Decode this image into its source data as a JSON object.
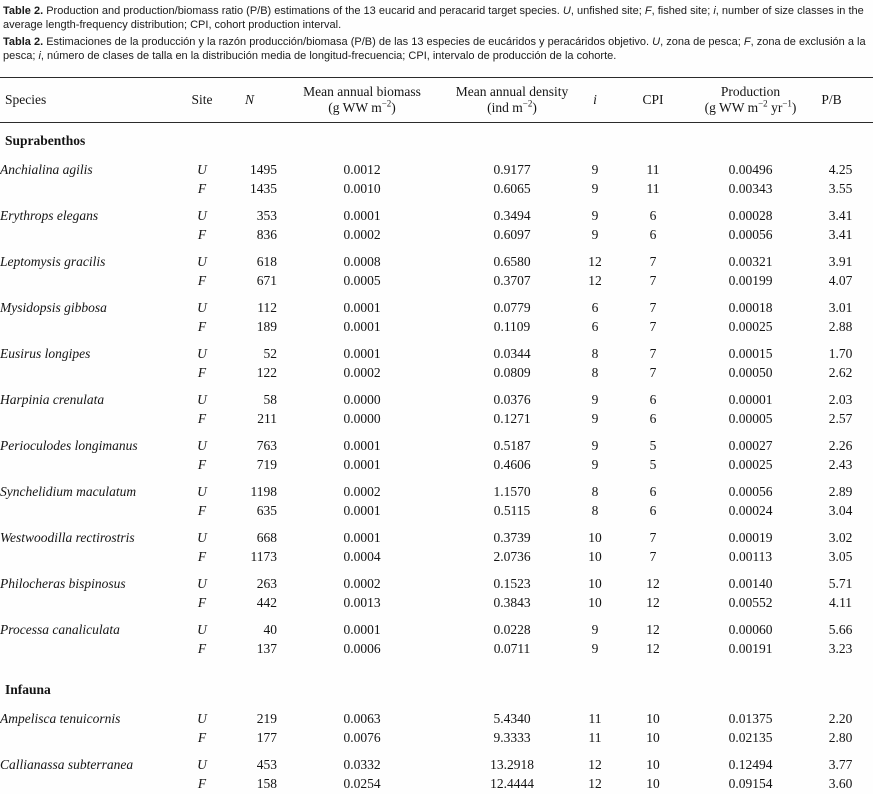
{
  "captions": {
    "english": {
      "label": "Table 2.",
      "s1": " Production and production/biomass ratio (P/B) estimations of the 13 eucarid and peracarid target species. ",
      "u": "U",
      "s2": ", unfished site; ",
      "f": "F",
      "s3": ", fished site; ",
      "i": "i",
      "s4": ", number of size classes in the average length-frequency distribution; CPI, cohort production interval."
    },
    "spanish": {
      "label": "Tabla 2.",
      "s1": " Estimaciones de la producción y la razón producción/biomasa (P/B) de las 13 especies de eucáridos y peracáridos objetivo. ",
      "u": "U",
      "s2": ", zona de pesca; ",
      "f": "F",
      "s3": ", zona de exclusión a la pesca; ",
      "i": "i",
      "s4": ", número de clases de talla en la distribución media de longitud-frecuencia; CPI, intervalo de producción de la cohorte."
    }
  },
  "table": {
    "header": {
      "species": "Species",
      "site": "Site",
      "n": "N",
      "biomass_title": "Mean annual biomass",
      "biomass_unit_pre": "(g WW m",
      "biomass_unit_sup": "−2",
      "biomass_unit_post": ")",
      "density_title": "Mean annual density",
      "density_unit_pre": "(ind m",
      "density_unit_sup": "−2",
      "density_unit_post": ")",
      "i": "i",
      "cpi": "CPI",
      "production_title": "Production",
      "production_unit_pre": "(g WW m",
      "production_unit_sup1": "−2",
      "production_unit_mid": " yr",
      "production_unit_sup2": "−1",
      "production_unit_post": ")",
      "pb": "P/B"
    },
    "sections": [
      {
        "title": "Suprabenthos",
        "species": [
          {
            "name": "Anchialina agilis",
            "rows": [
              {
                "site": "U",
                "n": "1495",
                "biomass": "0.0012",
                "density": "0.9177",
                "i": "9",
                "cpi": "11",
                "production": "0.00496",
                "pb": "4.25"
              },
              {
                "site": "F",
                "n": "1435",
                "biomass": "0.0010",
                "density": "0.6065",
                "i": "9",
                "cpi": "11",
                "production": "0.00343",
                "pb": "3.55"
              }
            ]
          },
          {
            "name": "Erythrops elegans",
            "rows": [
              {
                "site": "U",
                "n": "353",
                "biomass": "0.0001",
                "density": "0.3494",
                "i": "9",
                "cpi": "6",
                "production": "0.00028",
                "pb": "3.41"
              },
              {
                "site": "F",
                "n": "836",
                "biomass": "0.0002",
                "density": "0.6097",
                "i": "9",
                "cpi": "6",
                "production": "0.00056",
                "pb": "3.41"
              }
            ]
          },
          {
            "name": "Leptomysis gracilis",
            "rows": [
              {
                "site": "U",
                "n": "618",
                "biomass": "0.0008",
                "density": "0.6580",
                "i": "12",
                "cpi": "7",
                "production": "0.00321",
                "pb": "3.91"
              },
              {
                "site": "F",
                "n": "671",
                "biomass": "0.0005",
                "density": "0.3707",
                "i": "12",
                "cpi": "7",
                "production": "0.00199",
                "pb": "4.07"
              }
            ]
          },
          {
            "name": "Mysidopsis gibbosa",
            "rows": [
              {
                "site": "U",
                "n": "112",
                "biomass": "0.0001",
                "density": "0.0779",
                "i": "6",
                "cpi": "7",
                "production": "0.00018",
                "pb": "3.01"
              },
              {
                "site": "F",
                "n": "189",
                "biomass": "0.0001",
                "density": "0.1109",
                "i": "6",
                "cpi": "7",
                "production": "0.00025",
                "pb": "2.88"
              }
            ]
          },
          {
            "name": "Eusirus longipes",
            "rows": [
              {
                "site": "U",
                "n": "52",
                "biomass": "0.0001",
                "density": "0.0344",
                "i": "8",
                "cpi": "7",
                "production": "0.00015",
                "pb": "1.70"
              },
              {
                "site": "F",
                "n": "122",
                "biomass": "0.0002",
                "density": "0.0809",
                "i": "8",
                "cpi": "7",
                "production": "0.00050",
                "pb": "2.62"
              }
            ]
          },
          {
            "name": "Harpinia crenulata",
            "rows": [
              {
                "site": "U",
                "n": "58",
                "biomass": "0.0000",
                "density": "0.0376",
                "i": "9",
                "cpi": "6",
                "production": "0.00001",
                "pb": "2.03"
              },
              {
                "site": "F",
                "n": "211",
                "biomass": "0.0000",
                "density": "0.1271",
                "i": "9",
                "cpi": "6",
                "production": "0.00005",
                "pb": "2.57"
              }
            ]
          },
          {
            "name": "Perioculodes longimanus",
            "rows": [
              {
                "site": "U",
                "n": "763",
                "biomass": "0.0001",
                "density": "0.5187",
                "i": "9",
                "cpi": "5",
                "production": "0.00027",
                "pb": "2.26"
              },
              {
                "site": "F",
                "n": "719",
                "biomass": "0.0001",
                "density": "0.4606",
                "i": "9",
                "cpi": "5",
                "production": "0.00025",
                "pb": "2.43"
              }
            ]
          },
          {
            "name": "Synchelidium maculatum",
            "rows": [
              {
                "site": "U",
                "n": "1198",
                "biomass": "0.0002",
                "density": "1.1570",
                "i": "8",
                "cpi": "6",
                "production": "0.00056",
                "pb": "2.89"
              },
              {
                "site": "F",
                "n": "635",
                "biomass": "0.0001",
                "density": "0.5115",
                "i": "8",
                "cpi": "6",
                "production": "0.00024",
                "pb": "3.04"
              }
            ]
          },
          {
            "name": "Westwoodilla rectirostris",
            "rows": [
              {
                "site": "U",
                "n": "668",
                "biomass": "0.0001",
                "density": "0.3739",
                "i": "10",
                "cpi": "7",
                "production": "0.00019",
                "pb": "3.02"
              },
              {
                "site": "F",
                "n": "1173",
                "biomass": "0.0004",
                "density": "2.0736",
                "i": "10",
                "cpi": "7",
                "production": "0.00113",
                "pb": "3.05"
              }
            ]
          },
          {
            "name": "Philocheras bispinosus",
            "rows": [
              {
                "site": "U",
                "n": "263",
                "biomass": "0.0002",
                "density": "0.1523",
                "i": "10",
                "cpi": "12",
                "production": "0.00140",
                "pb": "5.71"
              },
              {
                "site": "F",
                "n": "442",
                "biomass": "0.0013",
                "density": "0.3843",
                "i": "10",
                "cpi": "12",
                "production": "0.00552",
                "pb": "4.11"
              }
            ]
          },
          {
            "name": "Processa canaliculata",
            "rows": [
              {
                "site": "U",
                "n": "40",
                "biomass": "0.0001",
                "density": "0.0228",
                "i": "9",
                "cpi": "12",
                "production": "0.00060",
                "pb": "5.66"
              },
              {
                "site": "F",
                "n": "137",
                "biomass": "0.0006",
                "density": "0.0711",
                "i": "9",
                "cpi": "12",
                "production": "0.00191",
                "pb": "3.23"
              }
            ]
          }
        ]
      },
      {
        "title": "Infauna",
        "species": [
          {
            "name": "Ampelisca tenuicornis",
            "rows": [
              {
                "site": "U",
                "n": "219",
                "biomass": "0.0063",
                "density": "5.4340",
                "i": "11",
                "cpi": "10",
                "production": "0.01375",
                "pb": "2.20"
              },
              {
                "site": "F",
                "n": "177",
                "biomass": "0.0076",
                "density": "9.3333",
                "i": "11",
                "cpi": "10",
                "production": "0.02135",
                "pb": "2.80"
              }
            ]
          },
          {
            "name": "Callianassa subterranea",
            "rows": [
              {
                "site": "U",
                "n": "453",
                "biomass": "0.0332",
                "density": "13.2918",
                "i": "12",
                "cpi": "10",
                "production": "0.12494",
                "pb": "3.77"
              },
              {
                "site": "F",
                "n": "158",
                "biomass": "0.0254",
                "density": "12.4444",
                "i": "12",
                "cpi": "10",
                "production": "0.09154",
                "pb": "3.60"
              }
            ]
          }
        ]
      }
    ]
  }
}
